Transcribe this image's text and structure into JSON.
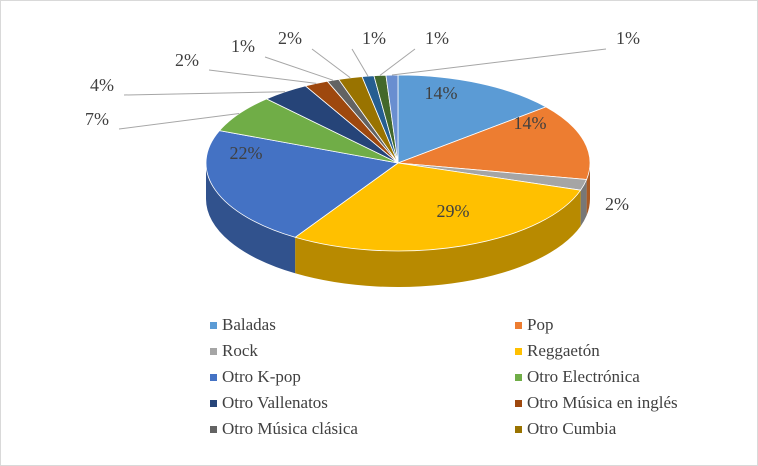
{
  "chart_data": {
    "type": "pie3d",
    "categories": [
      "Baladas",
      "Pop",
      "Rock",
      "Reggaetón",
      "Otro K-pop",
      "Otro Electrónica",
      "Otro Vallenatos",
      "Otro Música en inglés",
      "Otro Música clásica",
      "Otro Cumbia",
      null,
      null,
      null
    ],
    "values": [
      14,
      14,
      2,
      29,
      22,
      7,
      4,
      2,
      1,
      2,
      1,
      1,
      1
    ],
    "value_labels": [
      "14%",
      "14%",
      "2%",
      "29%",
      "22%",
      "7%",
      "4%",
      "2%",
      "1%",
      "2%",
      "1%",
      "1%",
      "1%"
    ],
    "colors": [
      "#5b9bd5",
      "#ed7d31",
      "#a5a5a5",
      "#ffc000",
      "#4472c4",
      "#70ad47",
      "#264478",
      "#9e480e",
      "#636363",
      "#997300",
      "#255e91",
      "#43682b",
      "#698ed0"
    ],
    "legend": "bottom"
  }
}
